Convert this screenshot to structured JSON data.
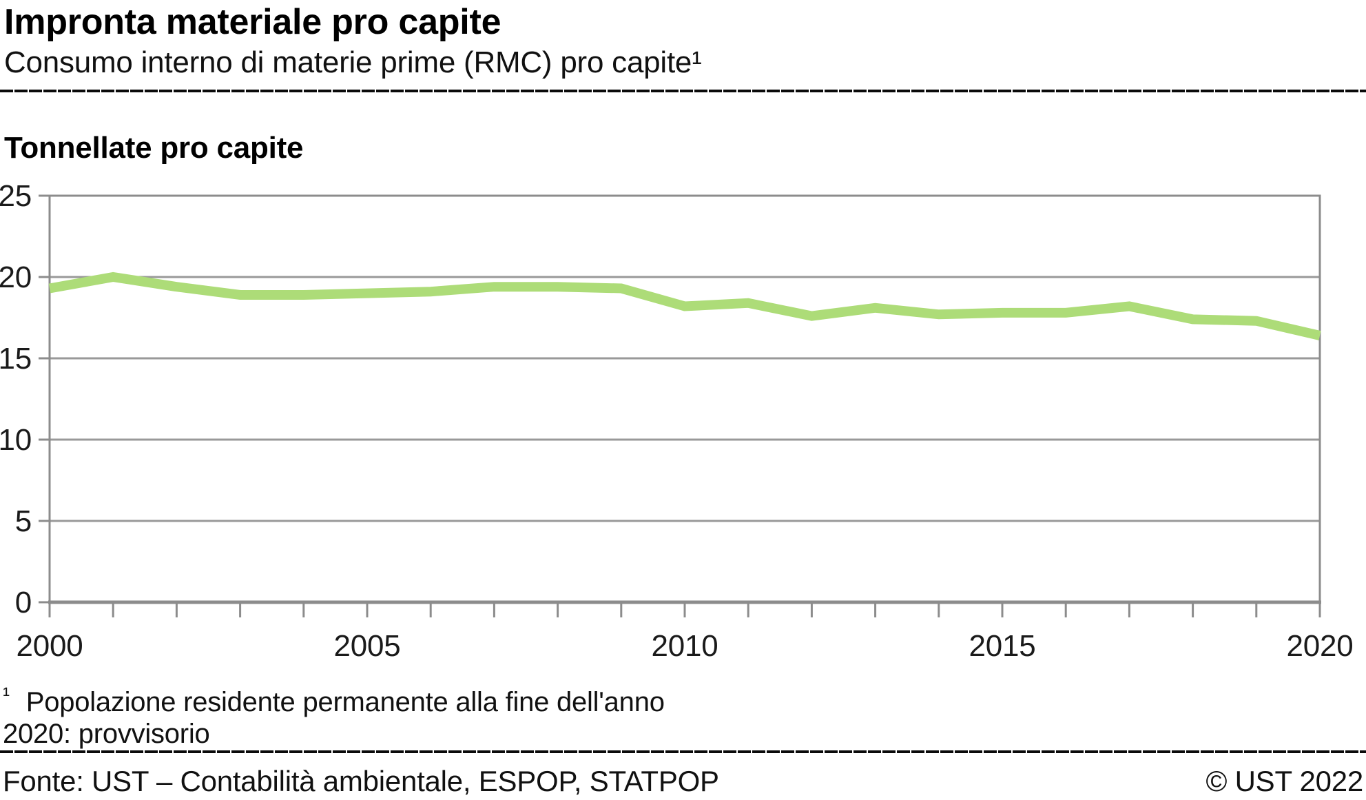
{
  "header": {
    "title": "Impronta materiale pro capite",
    "subtitle": "Consumo interno di materie prime (RMC) pro capite¹"
  },
  "chart": {
    "heading": "Tonnellate pro capite"
  },
  "chart_data": {
    "type": "line",
    "title": "Impronta materiale pro capite",
    "ylabel": "Tonnellate pro capite",
    "x": [
      2000,
      2001,
      2002,
      2003,
      2004,
      2005,
      2006,
      2007,
      2008,
      2009,
      2010,
      2011,
      2012,
      2013,
      2014,
      2015,
      2016,
      2017,
      2018,
      2019,
      2020
    ],
    "series": [
      {
        "name": "Consumo interno di materie prime (RMC) pro capite",
        "values": [
          19.3,
          20.0,
          19.4,
          18.9,
          18.9,
          19.0,
          19.1,
          19.4,
          19.4,
          19.3,
          18.2,
          18.4,
          17.6,
          18.1,
          17.7,
          17.8,
          17.8,
          18.2,
          17.4,
          17.3,
          16.4
        ]
      }
    ],
    "xlim": [
      2000,
      2020
    ],
    "ylim": [
      0,
      25
    ],
    "yticks": [
      0,
      5,
      10,
      15,
      20,
      25
    ],
    "xticks_minor_every": 1,
    "xticks_labeled": [
      2000,
      2005,
      2010,
      2015,
      2020
    ],
    "grid": "horizontal",
    "legend_position": "none",
    "line_color": "#ADDC78",
    "grid_color": "#999999",
    "axis_color": "#8C8C8C",
    "tick_label_color": "#1a1a1a"
  },
  "footnotes": {
    "marker": "¹",
    "note1": "Popolazione residente permanente alla fine dell'anno",
    "note2": "2020: provvisorio"
  },
  "footer": {
    "source": "Fonte: UST – Contabilità ambientale, ESPOP, STATPOP",
    "copyright": "© UST 2022"
  }
}
